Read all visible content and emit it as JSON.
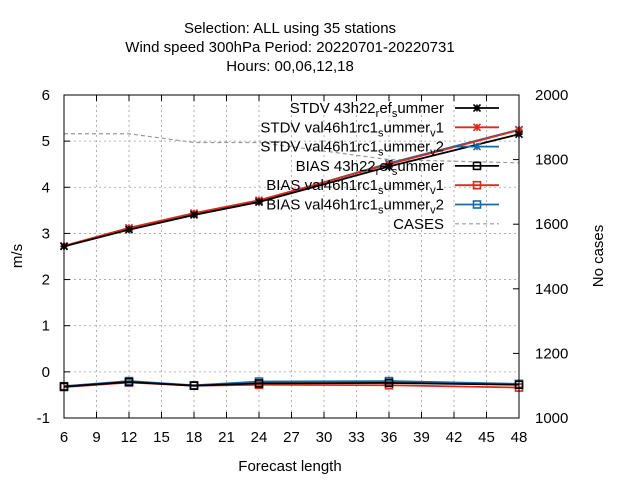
{
  "chart_data": {
    "type": "line",
    "title_lines": [
      "Selection: ALL using    35 stations",
      "Wind speed 300hPa   Period: 20220701-20220731",
      "Hours:  00,06,12,18"
    ],
    "xlabel": "Forecast length",
    "ylabel": "m/s",
    "y2label": "No cases",
    "xlim": [
      6,
      48
    ],
    "ylim": [
      -1,
      6
    ],
    "y2lim": [
      1000,
      2000
    ],
    "x_ticks": [
      "6",
      "9",
      "12",
      "15",
      "18",
      "21",
      "24",
      "27",
      "30",
      "33",
      "36",
      "39",
      "42",
      "45",
      "48"
    ],
    "y_ticks": [
      "-1",
      "0",
      "1",
      "2",
      "3",
      "4",
      "5",
      "6"
    ],
    "y2_ticks": [
      "1000",
      "1200",
      "1400",
      "1600",
      "1800",
      "2000"
    ],
    "grid": true,
    "legend_position": "top-right",
    "x": [
      6,
      12,
      18,
      24,
      36,
      48
    ],
    "series": [
      {
        "name": "STDV 43h22_ref_summer",
        "label_main": "STDV 43h22",
        "label_sub1": "r",
        "label_mid": "ef",
        "label_sub2": "s",
        "label_end": "ummer",
        "axis": "y1",
        "marker": "star",
        "color": "#000000",
        "values": [
          2.72,
          3.08,
          3.4,
          3.68,
          4.45,
          5.15
        ]
      },
      {
        "name": "STDV val46h1rc1_summer_v1",
        "label_main": "STDV val46h1rc1",
        "label_sub1": "s",
        "label_mid": "ummer",
        "label_sub2": "v",
        "label_end": "1",
        "axis": "y1",
        "marker": "star",
        "color": "#dd2a1b",
        "values": [
          2.73,
          3.12,
          3.44,
          3.72,
          4.5,
          5.24
        ]
      },
      {
        "name": "STDV val46h1rc1_summer_v2",
        "label_main": "STDV val46h1rc1",
        "label_sub1": "s",
        "label_mid": "ummer",
        "label_sub2": "v",
        "label_end": "2",
        "axis": "y1",
        "marker": "star",
        "color": "#1a6aa5",
        "values": [
          2.72,
          3.12,
          3.42,
          3.7,
          4.52,
          5.25
        ]
      },
      {
        "name": "BIAS 43h22_ref_summer",
        "label_main": "BIAS 43h22",
        "label_sub1": "r",
        "label_mid": "ef",
        "label_sub2": "s",
        "label_end": "ummer",
        "axis": "y1",
        "marker": "square",
        "color": "#000000",
        "values": [
          -0.32,
          -0.22,
          -0.3,
          -0.25,
          -0.24,
          -0.28
        ]
      },
      {
        "name": "BIAS val46h1rc1_summer_v1",
        "label_main": "BIAS val46h1rc1",
        "label_sub1": "s",
        "label_mid": "ummer",
        "label_sub2": "v",
        "label_end": "1",
        "axis": "y1",
        "marker": "square",
        "color": "#dd2a1b",
        "values": [
          -0.33,
          -0.23,
          -0.3,
          -0.28,
          -0.29,
          -0.34
        ]
      },
      {
        "name": "BIAS val46h1rc1_summer_v2",
        "label_main": "BIAS val46h1rc1",
        "label_sub1": "s",
        "label_mid": "ummer",
        "label_sub2": "v",
        "label_end": "2",
        "axis": "y1",
        "marker": "square",
        "color": "#1a6aa5",
        "values": [
          -0.31,
          -0.2,
          -0.29,
          -0.21,
          -0.2,
          -0.26
        ]
      },
      {
        "name": "CASES",
        "label_main": "CASES",
        "label_sub1": "",
        "label_mid": "",
        "label_sub2": "",
        "label_end": "",
        "axis": "y2",
        "marker": "none",
        "color": "#999999",
        "dashed": true,
        "values": [
          1880,
          1880,
          1853,
          1853,
          1800,
          1790
        ]
      }
    ]
  }
}
